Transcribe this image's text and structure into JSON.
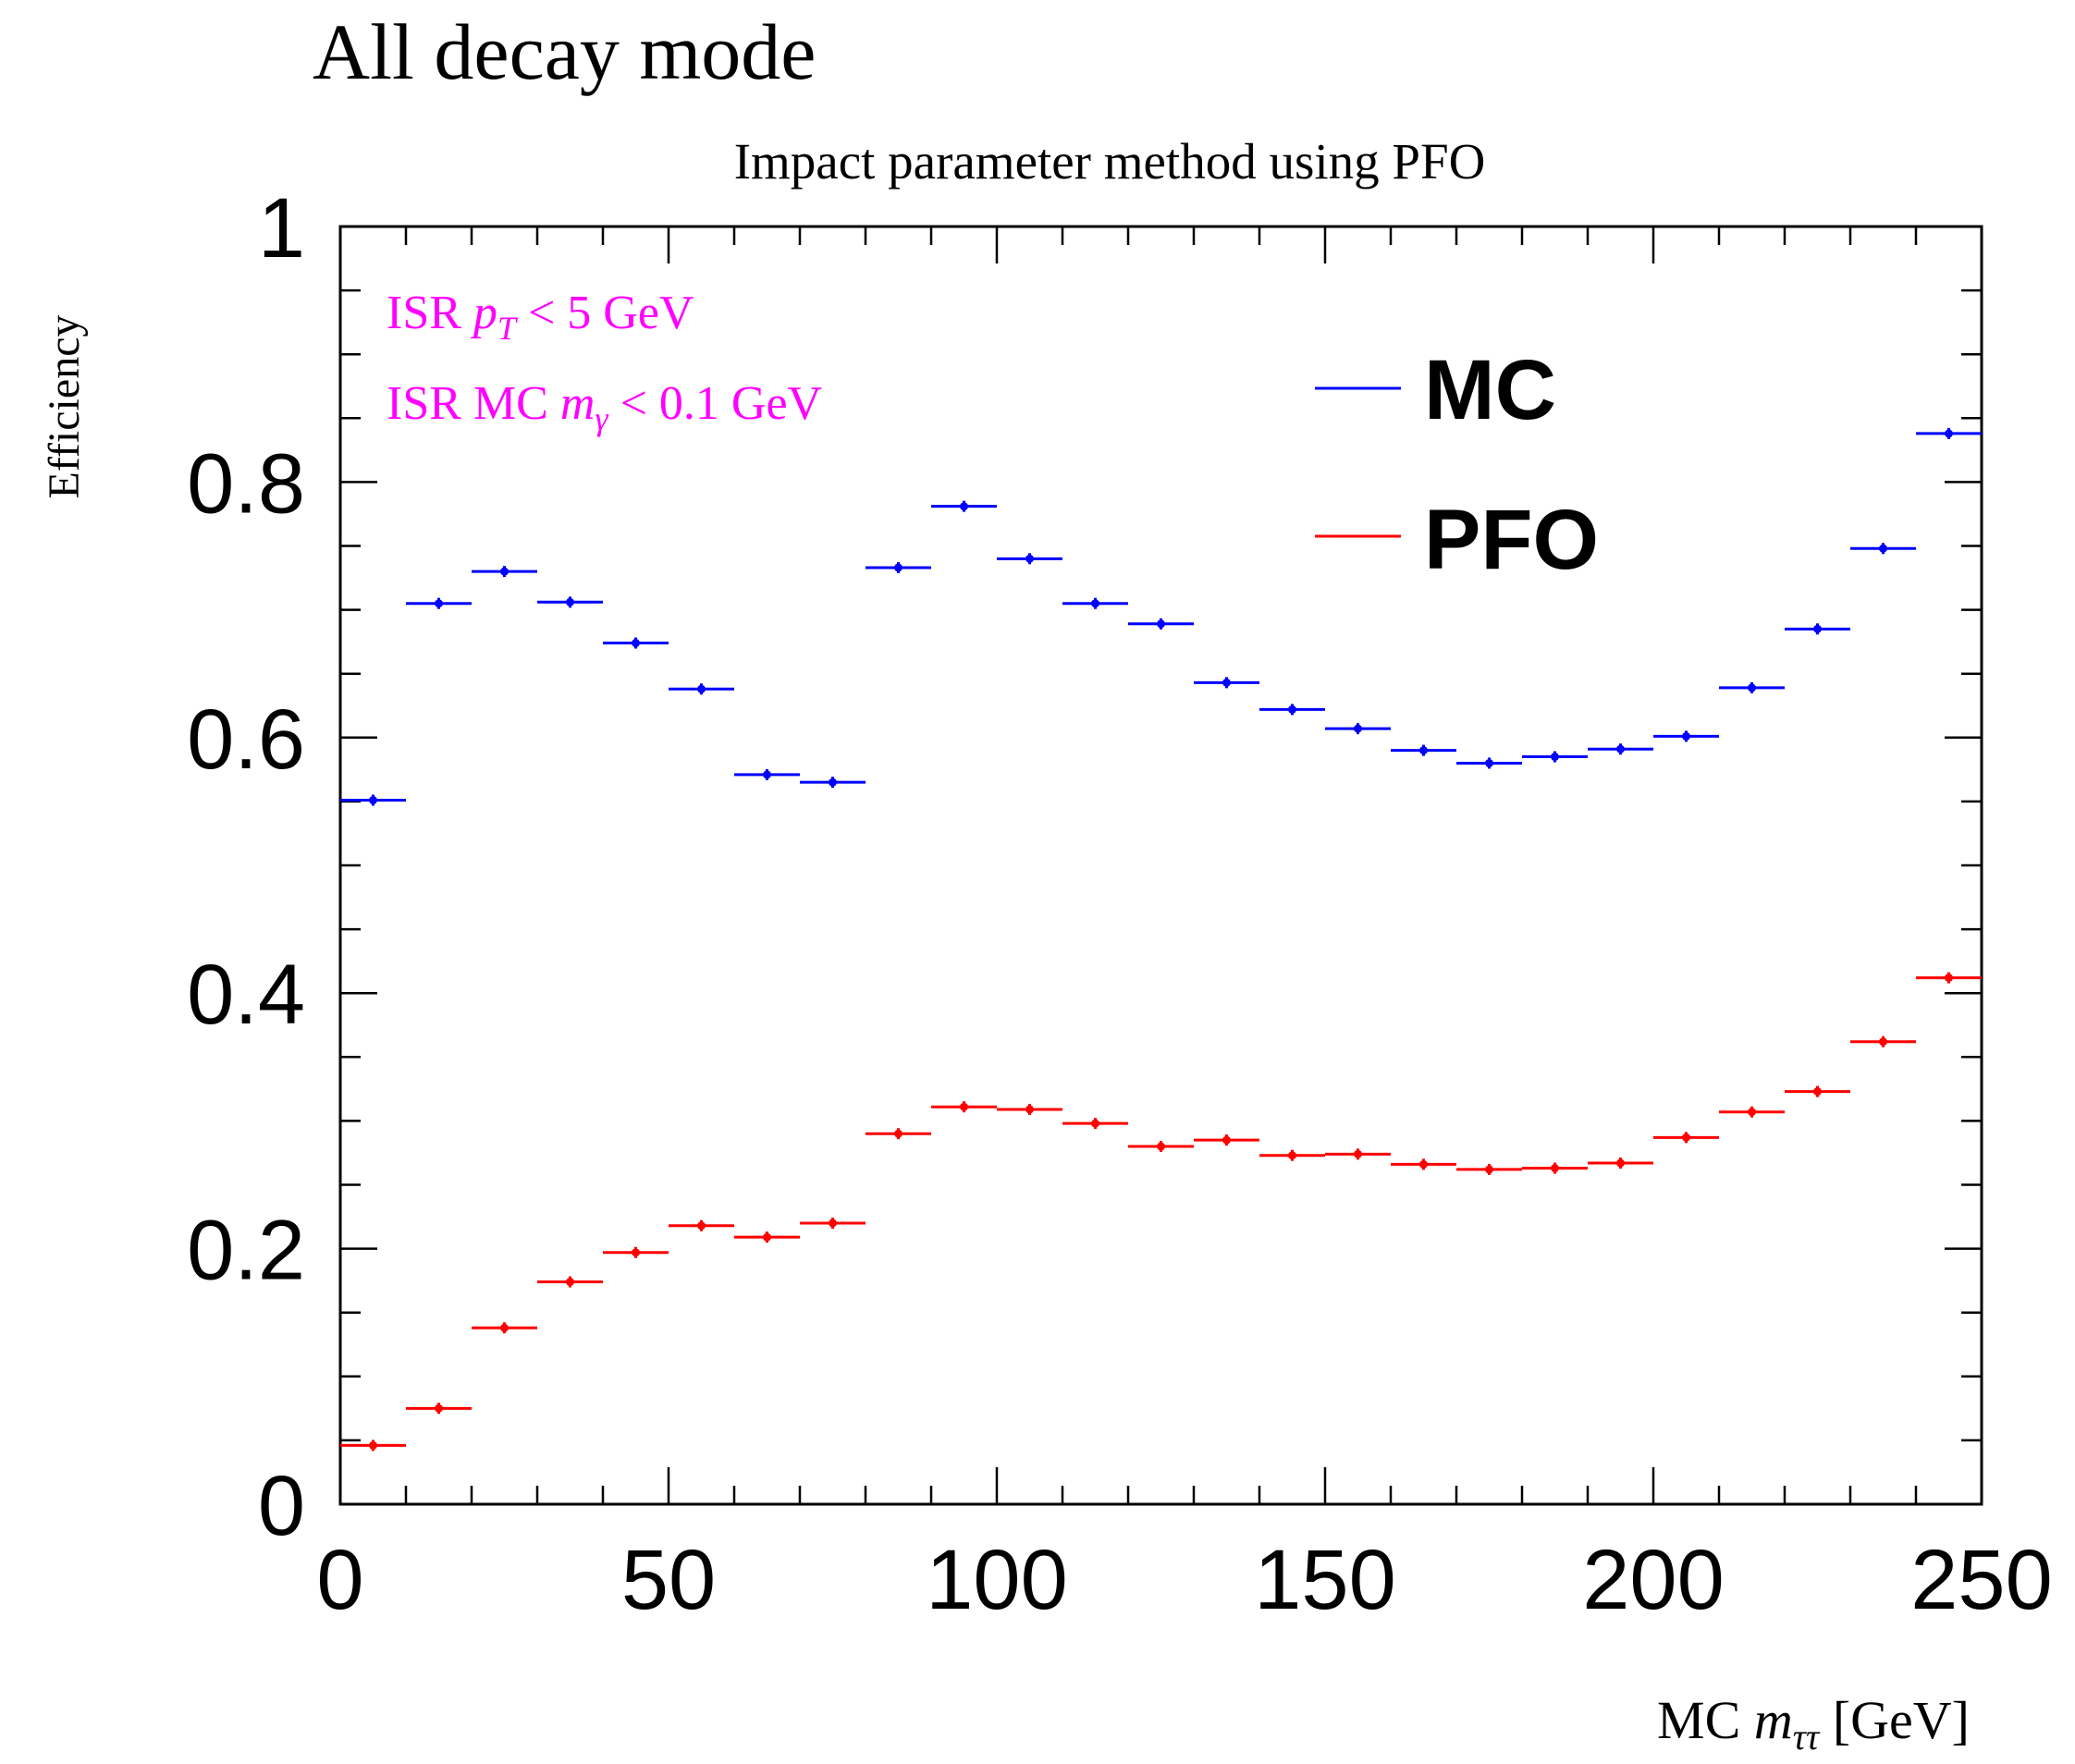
{
  "page_heading": "All decay mode",
  "chart_data": {
    "type": "scatter",
    "title": "Impact parameter method using PFO",
    "xlabel": "MC m_ττ [GeV]",
    "xlabel_parts": {
      "prefix": "MC ",
      "var": "m",
      "sub": "ττ",
      "suffix": " [GeV]"
    },
    "ylabel": "Efficiency",
    "xlim": [
      0,
      250
    ],
    "ylim": [
      0,
      1
    ],
    "x_ticks": [
      0,
      50,
      100,
      150,
      200,
      250
    ],
    "y_ticks": [
      0,
      0.2,
      0.4,
      0.6,
      0.8,
      1
    ],
    "y_tick_labels": [
      "0",
      "0.2",
      "0.4",
      "0.6",
      "0.8",
      "1"
    ],
    "bin_width": 10,
    "grid": false,
    "legend_position": "top-right",
    "annotations": [
      {
        "parts": [
          "ISR ",
          "p",
          "T",
          " < 5 GeV"
        ]
      },
      {
        "parts": [
          "ISR MC ",
          "m",
          "γ",
          " < 0.1 GeV"
        ]
      }
    ],
    "annotation_color": "#ff00ff",
    "x": [
      5,
      15,
      25,
      35,
      45,
      55,
      65,
      75,
      85,
      95,
      105,
      115,
      125,
      135,
      145,
      155,
      165,
      175,
      185,
      195,
      205,
      215,
      225,
      235,
      245
    ],
    "series": [
      {
        "name": "MC",
        "color": "#0000ff",
        "values": [
          0.551,
          0.705,
          0.73,
          0.706,
          0.674,
          0.638,
          0.571,
          0.565,
          0.733,
          0.781,
          0.74,
          0.705,
          0.689,
          0.643,
          0.622,
          0.607,
          0.59,
          0.58,
          0.585,
          0.591,
          0.601,
          0.639,
          0.685,
          0.748,
          0.838
        ]
      },
      {
        "name": "PFO",
        "color": "#ff0000",
        "values": [
          0.046,
          0.075,
          0.138,
          0.174,
          0.197,
          0.218,
          0.209,
          0.22,
          0.29,
          0.311,
          0.309,
          0.298,
          0.28,
          0.285,
          0.273,
          0.274,
          0.266,
          0.262,
          0.263,
          0.267,
          0.287,
          0.307,
          0.323,
          0.362,
          0.412
        ]
      }
    ]
  }
}
